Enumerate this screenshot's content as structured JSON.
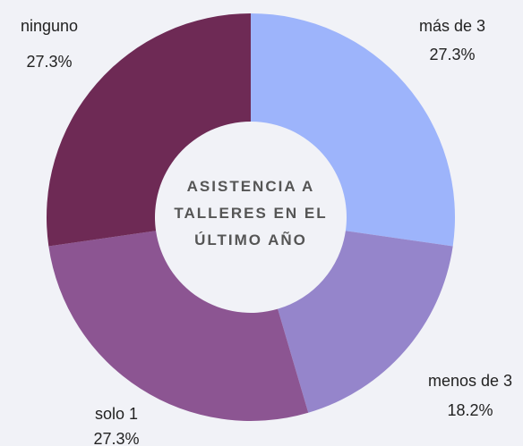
{
  "chart_data": {
    "type": "donut",
    "title": "ASISTENCIA A TALLERES EN EL ÚLTIMO AÑO",
    "categories": [
      "más de 3",
      "menos de 3",
      "solo 1",
      "ninguno"
    ],
    "values": [
      27.3,
      18.2,
      27.3,
      27.3
    ],
    "value_labels": [
      "27.3%",
      "18.2%",
      "27.3%",
      "27.3%"
    ],
    "colors": [
      "#9db4fb",
      "#9585cb",
      "#8c5592",
      "#6e2a55"
    ]
  }
}
